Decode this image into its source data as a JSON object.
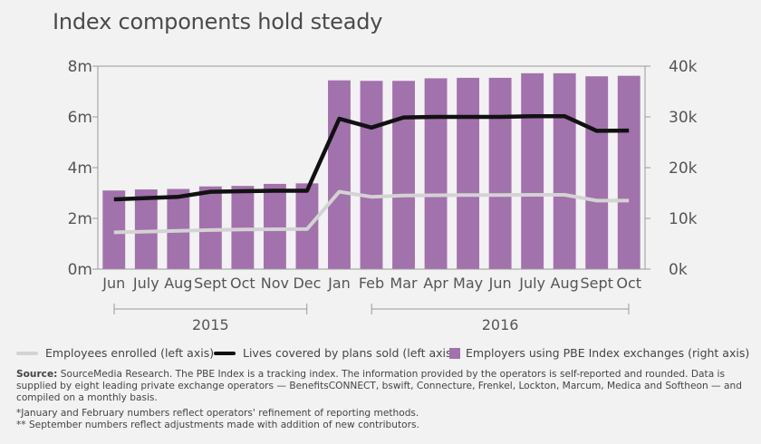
{
  "title": "Index components hold steady",
  "chart_data": {
    "type": "bar+line",
    "title": "Index components hold steady",
    "categories": [
      "Jun",
      "July",
      "Aug",
      "Sept",
      "Oct",
      "Nov",
      "Dec",
      "Jan",
      "Feb",
      "Mar",
      "Apr",
      "May",
      "Jun",
      "July",
      "Aug",
      "Sept",
      "Oct"
    ],
    "year_groups": [
      {
        "label": "2015",
        "from": 0,
        "to": 6
      },
      {
        "label": "2016",
        "from": 8,
        "to": 16
      }
    ],
    "left_axis": {
      "ylim": [
        0,
        8000000
      ],
      "ticks": [
        0,
        2000000,
        4000000,
        6000000,
        8000000
      ],
      "tick_labels": [
        "0m",
        "2m",
        "4m",
        "6m",
        "8m"
      ]
    },
    "right_axis": {
      "ylim": [
        0,
        40000
      ],
      "ticks": [
        0,
        10000,
        20000,
        30000,
        40000
      ],
      "tick_labels": [
        "0k",
        "10k",
        "20k",
        "30k",
        "40k"
      ]
    },
    "series": [
      {
        "name": "Employers using PBE Index exchanges",
        "type": "bar",
        "axis": "right",
        "color": "#a272ac",
        "values": [
          15500,
          15700,
          15800,
          16300,
          16400,
          16800,
          16900,
          37200,
          37100,
          37100,
          37600,
          37700,
          37700,
          38600,
          38600,
          38000,
          38100
        ]
      },
      {
        "name": "Employees enrolled",
        "type": "line",
        "axis": "left",
        "color": "#d3d3d3",
        "values": [
          1450000,
          1480000,
          1510000,
          1540000,
          1560000,
          1570000,
          1580000,
          3050000,
          2850000,
          2900000,
          2910000,
          2920000,
          2920000,
          2930000,
          2930000,
          2700000,
          2700000
        ]
      },
      {
        "name": "Lives covered by plans sold",
        "type": "line",
        "axis": "left",
        "color": "#111111",
        "values": [
          2750000,
          2800000,
          2850000,
          3050000,
          3070000,
          3090000,
          3090000,
          5930000,
          5580000,
          5980000,
          6000000,
          6000000,
          6000000,
          6030000,
          6030000,
          5450000,
          5460000
        ]
      }
    ]
  },
  "legend": {
    "employees": {
      "label": "Employees enrolled (left axis)",
      "color": "#d3d3d3"
    },
    "lives": {
      "label": "Lives covered by plans sold (left axis)",
      "color": "#111111"
    },
    "employers": {
      "label": "Employers using PBE Index exchanges (right axis)",
      "color": "#a272ac"
    }
  },
  "notes": {
    "source_label": "Source:",
    "source_text": "SourceMedia Research. The PBE Index is a tracking index. The information provided by the operators is self-reported and rounded. Data is supplied by eight leading private exchange operators — BenefitsCONNECT, bswift, Connecture, Frenkel, Lockton, Marcum, Medica and Softheon — and compiled on a monthly basis.",
    "note1": "*January and February numbers reflect operators' refinement of reporting methods.",
    "note2": "** September numbers reflect adjustments made with addition of new contributors."
  }
}
